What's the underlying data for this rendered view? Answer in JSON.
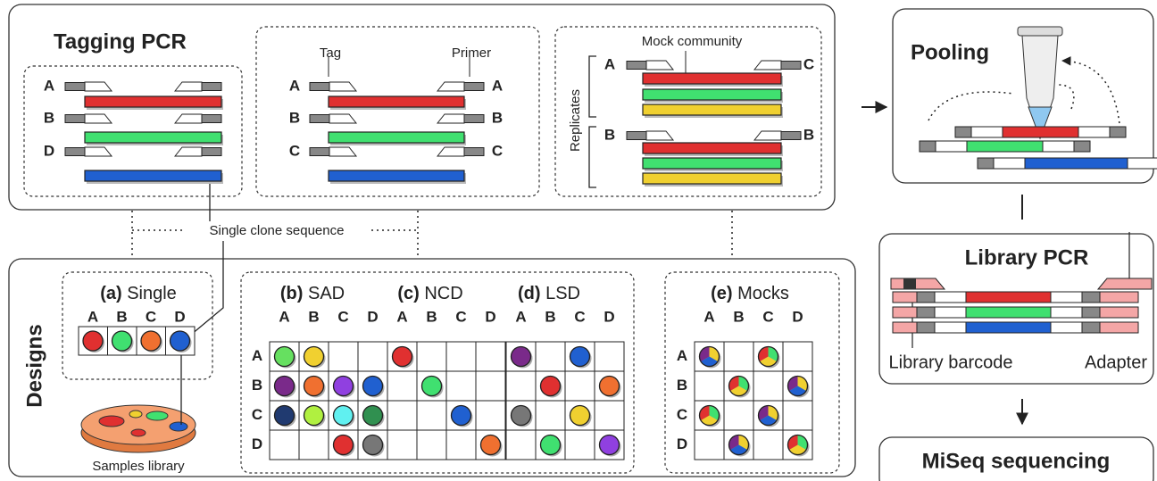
{
  "tagging_pcr": {
    "title": "Tagging PCR",
    "group1": {
      "labels": [
        "A",
        "B",
        "D"
      ]
    },
    "group2": {
      "tag_label": "Tag",
      "primer_label": "Primer",
      "left": [
        "A",
        "B",
        "C"
      ],
      "right": [
        "A",
        "B",
        "C"
      ]
    },
    "group3": {
      "mock_label": "Mock community",
      "replicates_label": "Replicates",
      "rep1": {
        "left": "A",
        "right": "C"
      },
      "rep2": {
        "left": "B",
        "right": "B"
      }
    },
    "clone_label": "Single clone sequence"
  },
  "pooling": {
    "title": "Pooling"
  },
  "library_pcr": {
    "title": "Library PCR",
    "barcode_label": "Library barcode",
    "adapter_label": "Adapter"
  },
  "miseq": {
    "title": "MiSeq sequencing"
  },
  "designs": {
    "title": "Designs",
    "samples_label": "Samples library",
    "panels": [
      {
        "tag": "(a)",
        "name": "Single",
        "cols": [
          "A",
          "B",
          "C",
          "D"
        ]
      },
      {
        "tag": "(b)",
        "name": "SAD",
        "cols": [
          "A",
          "B",
          "C",
          "D"
        ],
        "rows": [
          "A",
          "B",
          "C",
          "D"
        ]
      },
      {
        "tag": "(c)",
        "name": "NCD",
        "cols": [
          "A",
          "B",
          "C",
          "D"
        ]
      },
      {
        "tag": "(d)",
        "name": "LSD",
        "cols": [
          "A",
          "B",
          "C",
          "D"
        ]
      },
      {
        "tag": "(e)",
        "name": "Mocks",
        "cols": [
          "A",
          "B",
          "C",
          "D"
        ],
        "rows": [
          "A",
          "B",
          "C",
          "D"
        ]
      }
    ]
  }
}
